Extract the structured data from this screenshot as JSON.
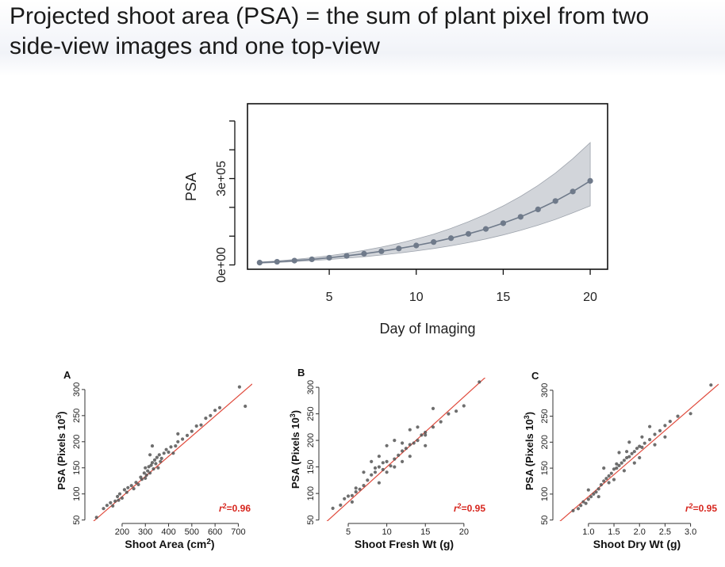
{
  "slide": {
    "title_line1": "Projected shoot area (PSA) = the sum of plant pixel from two",
    "title_line2": "side-view images and one top-view"
  },
  "colors": {
    "band": "#c3c7ce",
    "main_line": "#6f7a8a",
    "points": "#555555",
    "fit_line": "#e04a3c",
    "r2_text": "#d7261e"
  },
  "chart_data": [
    {
      "type": "line",
      "xlabel": "Day of Imaging",
      "ylabel": "PSA",
      "xlim": [
        0.3,
        21
      ],
      "ylim": [
        -15000,
        560000
      ],
      "x_ticks": [
        5,
        10,
        15,
        20
      ],
      "y_ticks": [
        0,
        100000,
        200000,
        300000,
        400000,
        500000
      ],
      "y_tick_labels": [
        {
          "value": 0,
          "label": "0e+00"
        },
        {
          "value": 300000,
          "label": "3e+05"
        }
      ],
      "x": [
        1,
        2,
        3,
        4,
        5,
        6,
        7,
        8,
        9,
        10,
        11,
        12,
        13,
        14,
        15,
        16,
        17,
        18,
        19,
        20
      ],
      "series": [
        {
          "values": [
            8000,
            11000,
            15000,
            19500,
            25000,
            31500,
            39000,
            47500,
            57000,
            67500,
            79500,
            93000,
            108000,
            125000,
            145000,
            167000,
            193000,
            222000,
            255000,
            292000
          ],
          "lower": [
            6000,
            8500,
            11500,
            15000,
            19000,
            23500,
            28500,
            34500,
            41000,
            48500,
            57000,
            66500,
            77500,
            90000,
            104000,
            120000,
            138000,
            158000,
            181000,
            205000
          ],
          "upper": [
            10000,
            14000,
            19000,
            25000,
            32000,
            40500,
            50500,
            62000,
            75000,
            90000,
            107000,
            127000,
            150000,
            176000,
            205000,
            238000,
            276000,
            319000,
            369000,
            425000
          ]
        }
      ]
    },
    {
      "type": "scatter",
      "panel_label": "A",
      "xlabel": "Shoot Area (cm²)",
      "ylabel": "PSA (Pixels 10³)",
      "xlim": [
        50,
        760
      ],
      "ylim": [
        48,
        318
      ],
      "x_ticks": [
        200,
        300,
        400,
        500,
        600,
        700
      ],
      "y_ticks": [
        50,
        100,
        150,
        200,
        250,
        300
      ],
      "annotation": "r²=0.96",
      "fit": {
        "slope": 0.385,
        "intercept": 18
      },
      "points": [
        [
          90,
          55
        ],
        [
          120,
          72
        ],
        [
          135,
          78
        ],
        [
          150,
          83
        ],
        [
          160,
          77
        ],
        [
          170,
          86
        ],
        [
          180,
          95
        ],
        [
          185,
          88
        ],
        [
          190,
          100
        ],
        [
          200,
          92
        ],
        [
          210,
          108
        ],
        [
          220,
          103
        ],
        [
          225,
          112
        ],
        [
          240,
          116
        ],
        [
          250,
          110
        ],
        [
          260,
          122
        ],
        [
          270,
          118
        ],
        [
          280,
          132
        ],
        [
          285,
          128
        ],
        [
          295,
          140
        ],
        [
          300,
          150
        ],
        [
          305,
          136
        ],
        [
          310,
          144
        ],
        [
          315,
          152
        ],
        [
          320,
          140
        ],
        [
          325,
          155
        ],
        [
          330,
          160
        ],
        [
          335,
          148
        ],
        [
          340,
          165
        ],
        [
          345,
          158
        ],
        [
          350,
          170
        ],
        [
          355,
          150
        ],
        [
          360,
          175
        ],
        [
          365,
          162
        ],
        [
          370,
          168
        ],
        [
          380,
          178
        ],
        [
          390,
          185
        ],
        [
          400,
          180
        ],
        [
          410,
          190
        ],
        [
          420,
          178
        ],
        [
          430,
          192
        ],
        [
          440,
          200
        ],
        [
          460,
          205
        ],
        [
          480,
          212
        ],
        [
          500,
          220
        ],
        [
          520,
          230
        ],
        [
          540,
          232
        ],
        [
          560,
          245
        ],
        [
          580,
          250
        ],
        [
          600,
          260
        ],
        [
          620,
          265
        ],
        [
          330,
          192
        ],
        [
          320,
          175
        ],
        [
          705,
          305
        ],
        [
          730,
          268
        ],
        [
          440,
          215
        ],
        [
          300,
          130
        ]
      ]
    },
    {
      "type": "scatter",
      "panel_label": "B",
      "xlabel": "Shoot Fresh Wt (g)",
      "ylabel": "PSA (Pixels 10³)",
      "xlim": [
        1.5,
        23
      ],
      "ylim": [
        48,
        318
      ],
      "x_ticks": [
        5,
        10,
        15,
        20
      ],
      "y_ticks": [
        50,
        100,
        150,
        200,
        250,
        300
      ],
      "annotation": "r²=0.95",
      "fit": {
        "slope": 13.2,
        "intercept": 18
      },
      "points": [
        [
          3,
          72
        ],
        [
          4,
          78
        ],
        [
          4.5,
          90
        ],
        [
          5,
          95
        ],
        [
          5.5,
          84
        ],
        [
          6,
          103
        ],
        [
          6.5,
          108
        ],
        [
          7,
          115
        ],
        [
          7.5,
          125
        ],
        [
          8,
          135
        ],
        [
          8.5,
          140
        ],
        [
          9,
          150
        ],
        [
          9.5,
          145
        ],
        [
          10,
          160
        ],
        [
          10.5,
          152
        ],
        [
          11,
          165
        ],
        [
          11.5,
          172
        ],
        [
          12,
          180
        ],
        [
          12.5,
          185
        ],
        [
          13,
          192
        ],
        [
          13.5,
          195
        ],
        [
          14,
          200
        ],
        [
          14.5,
          210
        ],
        [
          15,
          215
        ],
        [
          16,
          225
        ],
        [
          17,
          235
        ],
        [
          18,
          250
        ],
        [
          19,
          255
        ],
        [
          20,
          265
        ],
        [
          22,
          310
        ],
        [
          7,
          140
        ],
        [
          8,
          160
        ],
        [
          9,
          170
        ],
        [
          10,
          190
        ],
        [
          11,
          200
        ],
        [
          12,
          195
        ],
        [
          13,
          220
        ],
        [
          14,
          225
        ],
        [
          15,
          210
        ],
        [
          16,
          260
        ],
        [
          10,
          140
        ],
        [
          11,
          150
        ],
        [
          12,
          160
        ],
        [
          9,
          120
        ],
        [
          6,
          110
        ],
        [
          5.5,
          96
        ],
        [
          8.5,
          148
        ],
        [
          9.5,
          158
        ],
        [
          13,
          170
        ],
        [
          15,
          190
        ]
      ]
    },
    {
      "type": "scatter",
      "panel_label": "C",
      "xlabel": "Shoot Dry Wt (g)",
      "ylabel": "PSA (Pixels 10³)",
      "xlim": [
        0.35,
        3.55
      ],
      "ylim": [
        48,
        318
      ],
      "x_ticks": [
        1.0,
        1.5,
        2.0,
        2.5,
        3.0
      ],
      "x_tick_labels": [
        "1.0",
        "1.5",
        "2.0",
        "2.5",
        "3.0"
      ],
      "y_ticks": [
        50,
        100,
        150,
        200,
        250,
        300
      ],
      "annotation": "r²=0.95",
      "fit": {
        "slope": 85,
        "intercept": 10
      },
      "points": [
        [
          0.7,
          68
        ],
        [
          0.8,
          72
        ],
        [
          0.85,
          78
        ],
        [
          0.9,
          85
        ],
        [
          0.95,
          82
        ],
        [
          1.0,
          90
        ],
        [
          1.05,
          95
        ],
        [
          1.1,
          100
        ],
        [
          1.15,
          104
        ],
        [
          1.2,
          110
        ],
        [
          1.25,
          118
        ],
        [
          1.3,
          125
        ],
        [
          1.35,
          130
        ],
        [
          1.4,
          135
        ],
        [
          1.45,
          140
        ],
        [
          1.5,
          148
        ],
        [
          1.55,
          150
        ],
        [
          1.6,
          155
        ],
        [
          1.65,
          160
        ],
        [
          1.7,
          165
        ],
        [
          1.75,
          170
        ],
        [
          1.8,
          172
        ],
        [
          1.85,
          178
        ],
        [
          1.9,
          182
        ],
        [
          1.95,
          188
        ],
        [
          2.0,
          192
        ],
        [
          2.05,
          190
        ],
        [
          2.1,
          198
        ],
        [
          2.2,
          205
        ],
        [
          2.3,
          215
        ],
        [
          2.4,
          222
        ],
        [
          2.5,
          232
        ],
        [
          2.6,
          240
        ],
        [
          2.75,
          250
        ],
        [
          3.0,
          255
        ],
        [
          3.4,
          310
        ],
        [
          1.3,
          150
        ],
        [
          1.6,
          180
        ],
        [
          1.8,
          200
        ],
        [
          2.0,
          170
        ],
        [
          2.2,
          230
        ],
        [
          1.5,
          128
        ],
        [
          1.7,
          145
        ],
        [
          1.9,
          160
        ],
        [
          1.2,
          95
        ],
        [
          1.4,
          122
        ],
        [
          2.5,
          210
        ],
        [
          1.0,
          108
        ],
        [
          1.55,
          158
        ],
        [
          1.75,
          182
        ],
        [
          2.05,
          210
        ],
        [
          2.3,
          195
        ]
      ]
    }
  ]
}
